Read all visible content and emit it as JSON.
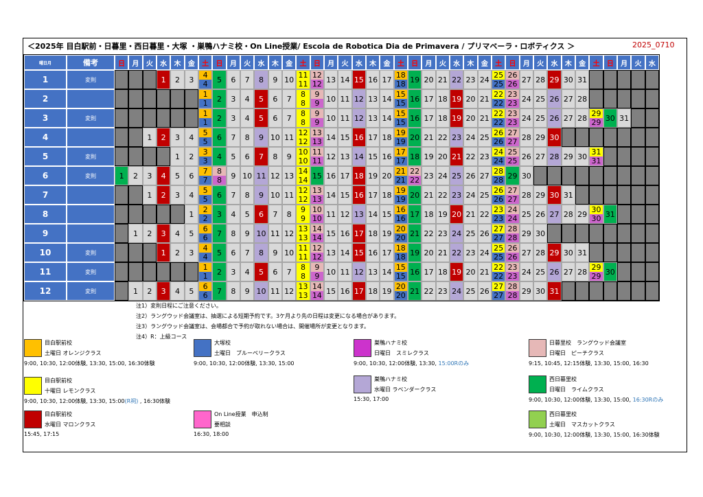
{
  "title": "＜2025年 目白駅前・日暮里・西日暮里・大塚 ・巣鴨ハナミ校・On Line授業/ Escola de Robotica Dia de Primavera / プリマベーラ・ロボティクス ＞",
  "version": "2025_0710",
  "calendar": {
    "corner_label": "曜日月",
    "note_header": "備考",
    "weekday_headers": [
      "日",
      "月",
      "火",
      "水",
      "木",
      "金",
      "土",
      "日",
      "月",
      "火",
      "水",
      "木",
      "金",
      "土",
      "日",
      "月",
      "火",
      "水",
      "木",
      "金",
      "土",
      "日",
      "月",
      "火",
      "水",
      "木",
      "金",
      "土",
      "日",
      "月",
      "火",
      "水",
      "木",
      "金",
      "土",
      "日",
      "月",
      "火",
      "水"
    ],
    "months": [
      {
        "month": "1",
        "note": "変則",
        "offset": 3,
        "days": 31,
        "highlights": {
          "1": "#d9d9d9",
          "4": "#ffc000/#4472c4",
          "5": "#00b050",
          "8": "#cc66cc",
          "11": "#ffff00",
          "12": "#e6b8b7",
          "15": "#c00000",
          "18": "#ffc000/#4472c4",
          "19": "#00b050",
          "22": "#b4a7d6",
          "25": "#ffff00",
          "26": "#e6b8b7",
          "29": "#c00000"
        }
      },
      {
        "month": "2",
        "note": "",
        "offset": 6,
        "days": 28
      },
      {
        "month": "3",
        "note": "変則",
        "offset": 6,
        "days": 31
      },
      {
        "month": "4",
        "note": "",
        "offset": 2,
        "days": 30
      },
      {
        "month": "5",
        "note": "変則",
        "offset": 4,
        "days": 31
      },
      {
        "month": "6",
        "note": "変則",
        "offset": 0,
        "days": 30
      },
      {
        "month": "7",
        "note": "",
        "offset": 2,
        "days": 31
      },
      {
        "month": "8",
        "note": "",
        "offset": 5,
        "days": 31
      },
      {
        "month": "9",
        "note": "",
        "offset": 1,
        "days": 30
      },
      {
        "month": "10",
        "note": "変則",
        "offset": 3,
        "days": 31
      },
      {
        "month": "11",
        "note": "変則",
        "offset": 6,
        "days": 30
      },
      {
        "month": "12",
        "note": "変則",
        "offset": 1,
        "days": 31
      }
    ]
  },
  "notes": [
    "注1）変則日程にご注意ください。",
    "注2）ラングウッド会議室は、抽選による短期予約です。3ケ月より先の日程は変更になる場合があります。",
    "注3）ラングウッド会議室は、会場都合で予約が取れない場合は、開催場所が変更となります。",
    "注4）R：上級コース"
  ],
  "legend": [
    {
      "color": "#ffc000",
      "school": "目白駅前校",
      "cls": "土曜日 オレンジクラス",
      "times": "9:00, 10:30, 12:00体験, 13:30, 15:00, 16:30体験",
      "times_note": ""
    },
    {
      "color": "#ffff00",
      "school": "目白駅前校",
      "cls": "十曜日 レモンクラス",
      "times": "9:00, 10:30, 12:00体験, 13:30, 15:00",
      "times_note": "(R祠)",
      "times_tail": " , 16:30体験"
    },
    {
      "color": "#c00000",
      "school": "目白駅前校",
      "cls": "水曜日 マロンクラス",
      "times": "15:45, 17:15",
      "times_note": ""
    },
    {
      "color": "#4472c4",
      "school": "大塚校",
      "cls": "土曜日　ブルーベリークラス",
      "times": "9:00, 10:30, 12:00体験, 13:30, 15:00",
      "times_note": ""
    },
    {
      "color": "#ff66cc",
      "school": "On Line授業　申込制",
      "cls": "要相談",
      "times": "16:30, 18:00",
      "times_note": ""
    },
    {
      "color": "#cc33cc",
      "school": "巣鴨ハナミ校",
      "cls": "日曜日　スミレクラス",
      "times": "9:00, 10:30, 12:00体験, 13:30, ",
      "times_note": "15:00Rのみ"
    },
    {
      "color": "#b4a7d6",
      "school": "巣鴨ハナミ校",
      "cls": "水曜日 ラベンダークラス",
      "times": "15:30, 17:00",
      "times_note": ""
    },
    {
      "color": "#e6b8b7",
      "school": "日暮里校　ラングウッド会議室",
      "cls": "日曜日　ピーチクラス",
      "times": "9:15, 10:45, 12:15体験, 13:30, 15:00, 16:30",
      "times_note": ""
    },
    {
      "color": "#00b050",
      "school": "西日暮里校",
      "cls": "日曜日　ライムクラス",
      "times": "9:00, 10:30, 12:00体験, 13:30, 15:00, ",
      "times_note": "16:30Rのみ"
    },
    {
      "color": "#92d050",
      "school": "西日暮里校",
      "cls": "土曜日　マスカットクラス",
      "times": "9:00, 10:30, 12:00体験, 13:30, 15:00, 16:30体験",
      "times_note": ""
    }
  ],
  "colors": {
    "header_blue": "#4472c4",
    "sat_yellow_orange": "#ffc000",
    "sun_green": "#00b050",
    "wed_red": "#c00000",
    "lavender": "#b4a7d6",
    "magenta": "#cc66cc",
    "pink": "#e6b8b7",
    "lemon": "#ffff00",
    "day_gray": "#d9d9d9",
    "blank_gray": "#808080"
  }
}
